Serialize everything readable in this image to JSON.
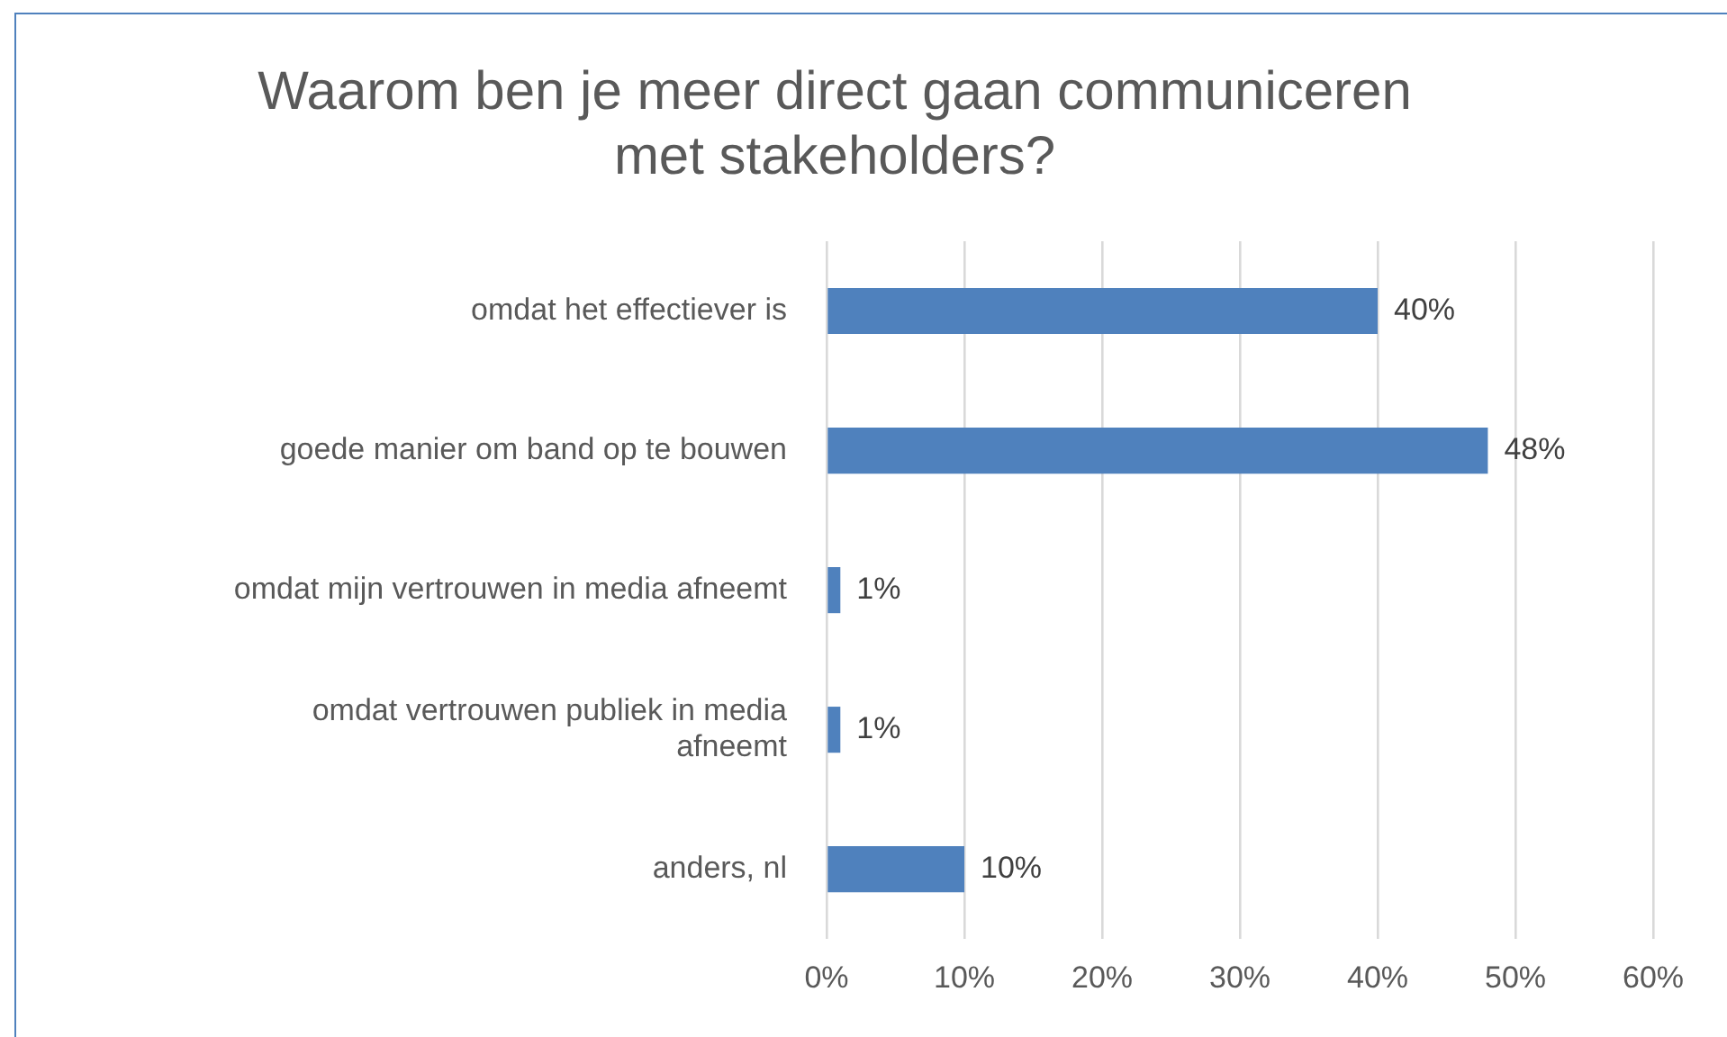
{
  "chart_data": {
    "type": "bar",
    "orientation": "horizontal",
    "title": "Waarom ben je meer direct gaan communiceren met stakeholders?",
    "categories": [
      "omdat het effectiever is",
      "goede manier om band op te bouwen",
      "omdat mijn vertrouwen in media afneemt",
      "omdat vertrouwen publiek in media afneemt",
      "anders, nl"
    ],
    "values": [
      40,
      48,
      1,
      1,
      10
    ],
    "value_labels": [
      "40%",
      "48%",
      "1%",
      "1%",
      "10%"
    ],
    "color": "#4f81bd",
    "xlim": [
      0,
      60
    ],
    "xticks": [
      {
        "value": 0,
        "label": "0%"
      },
      {
        "value": 10,
        "label": "10%"
      },
      {
        "value": 20,
        "label": "20%"
      },
      {
        "value": 30,
        "label": "30%"
      },
      {
        "value": 40,
        "label": "40%"
      },
      {
        "value": 50,
        "label": "50%"
      },
      {
        "value": 60,
        "label": "60%"
      }
    ],
    "grid": "x"
  }
}
